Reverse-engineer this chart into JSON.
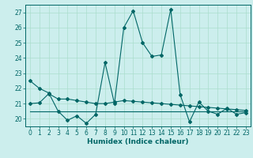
{
  "title": "",
  "xlabel": "Humidex (Indice chaleur)",
  "bg_color": "#cceeed",
  "grid_color": "#aaddcc",
  "line_color": "#006666",
  "xlim": [
    -0.5,
    23.5
  ],
  "ylim": [
    19.5,
    27.5
  ],
  "yticks": [
    20,
    21,
    22,
    23,
    24,
    25,
    26,
    27
  ],
  "xticks": [
    0,
    1,
    2,
    3,
    4,
    5,
    6,
    7,
    8,
    9,
    10,
    11,
    12,
    13,
    14,
    15,
    16,
    17,
    18,
    19,
    20,
    21,
    22,
    23
  ],
  "line1_x": [
    0,
    1,
    2,
    3,
    4,
    5,
    6,
    7,
    8,
    9,
    10,
    11,
    12,
    13,
    14,
    15,
    16,
    17,
    18,
    19,
    20,
    21,
    22,
    23
  ],
  "line1_y": [
    22.5,
    22.0,
    21.7,
    20.5,
    19.9,
    20.2,
    19.7,
    20.3,
    23.7,
    21.0,
    26.0,
    27.1,
    25.0,
    24.1,
    24.2,
    27.2,
    21.6,
    19.8,
    21.1,
    20.5,
    20.3,
    20.7,
    20.3,
    20.4
  ],
  "line2_x": [
    0,
    1,
    2,
    3,
    4,
    5,
    6,
    7,
    8,
    9,
    10,
    11,
    12,
    13,
    14,
    15,
    16,
    17,
    18,
    19,
    20,
    21,
    22,
    23
  ],
  "line2_y": [
    21.0,
    21.05,
    21.65,
    21.3,
    21.3,
    21.2,
    21.1,
    21.0,
    21.0,
    21.1,
    21.2,
    21.15,
    21.1,
    21.05,
    21.0,
    20.95,
    20.9,
    20.85,
    20.8,
    20.75,
    20.7,
    20.65,
    20.6,
    20.55
  ],
  "line3_x": [
    0,
    23
  ],
  "line3_y": [
    20.5,
    20.5
  ]
}
